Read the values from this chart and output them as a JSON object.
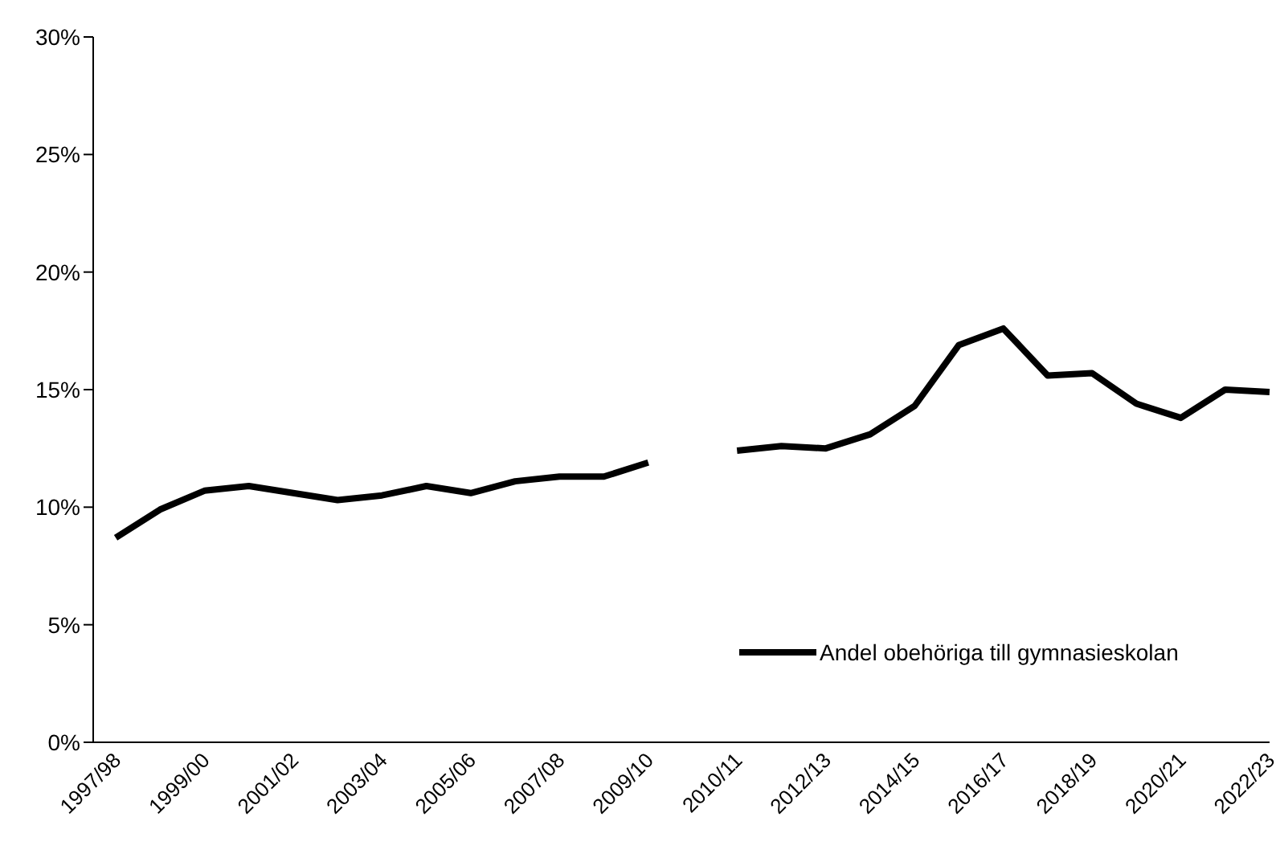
{
  "chart_data": {
    "type": "line",
    "categories": [
      "1997/98",
      null,
      "1999/00",
      null,
      "2001/02",
      null,
      "2003/04",
      null,
      "2005/06",
      null,
      "2007/08",
      null,
      "2009/10",
      null,
      "2010/11",
      null,
      "2012/13",
      null,
      "2014/15",
      null,
      "2016/17",
      null,
      "2018/19",
      null,
      "2020/21",
      null,
      "2022/23"
    ],
    "series": [
      {
        "name": "Andel obehöriga till gymnasieskolan",
        "color": "#000000",
        "values": [
          8.7,
          9.9,
          10.7,
          10.9,
          10.6,
          10.3,
          10.5,
          10.9,
          10.6,
          11.1,
          11.3,
          11.3,
          11.9,
          null,
          12.4,
          12.6,
          12.5,
          13.1,
          14.3,
          16.9,
          17.6,
          15.6,
          15.7,
          14.4,
          13.8,
          15.0,
          14.9
        ]
      }
    ],
    "ylim": [
      0,
      30
    ],
    "yticks": [
      {
        "value": 0,
        "label": "0%"
      },
      {
        "value": 5,
        "label": "5%"
      },
      {
        "value": 10,
        "label": "10%"
      },
      {
        "value": 15,
        "label": "15%"
      },
      {
        "value": 20,
        "label": "20%"
      },
      {
        "value": 25,
        "label": "25%"
      },
      {
        "value": 30,
        "label": "30%"
      }
    ],
    "grid": false,
    "legend": "bottom right"
  }
}
